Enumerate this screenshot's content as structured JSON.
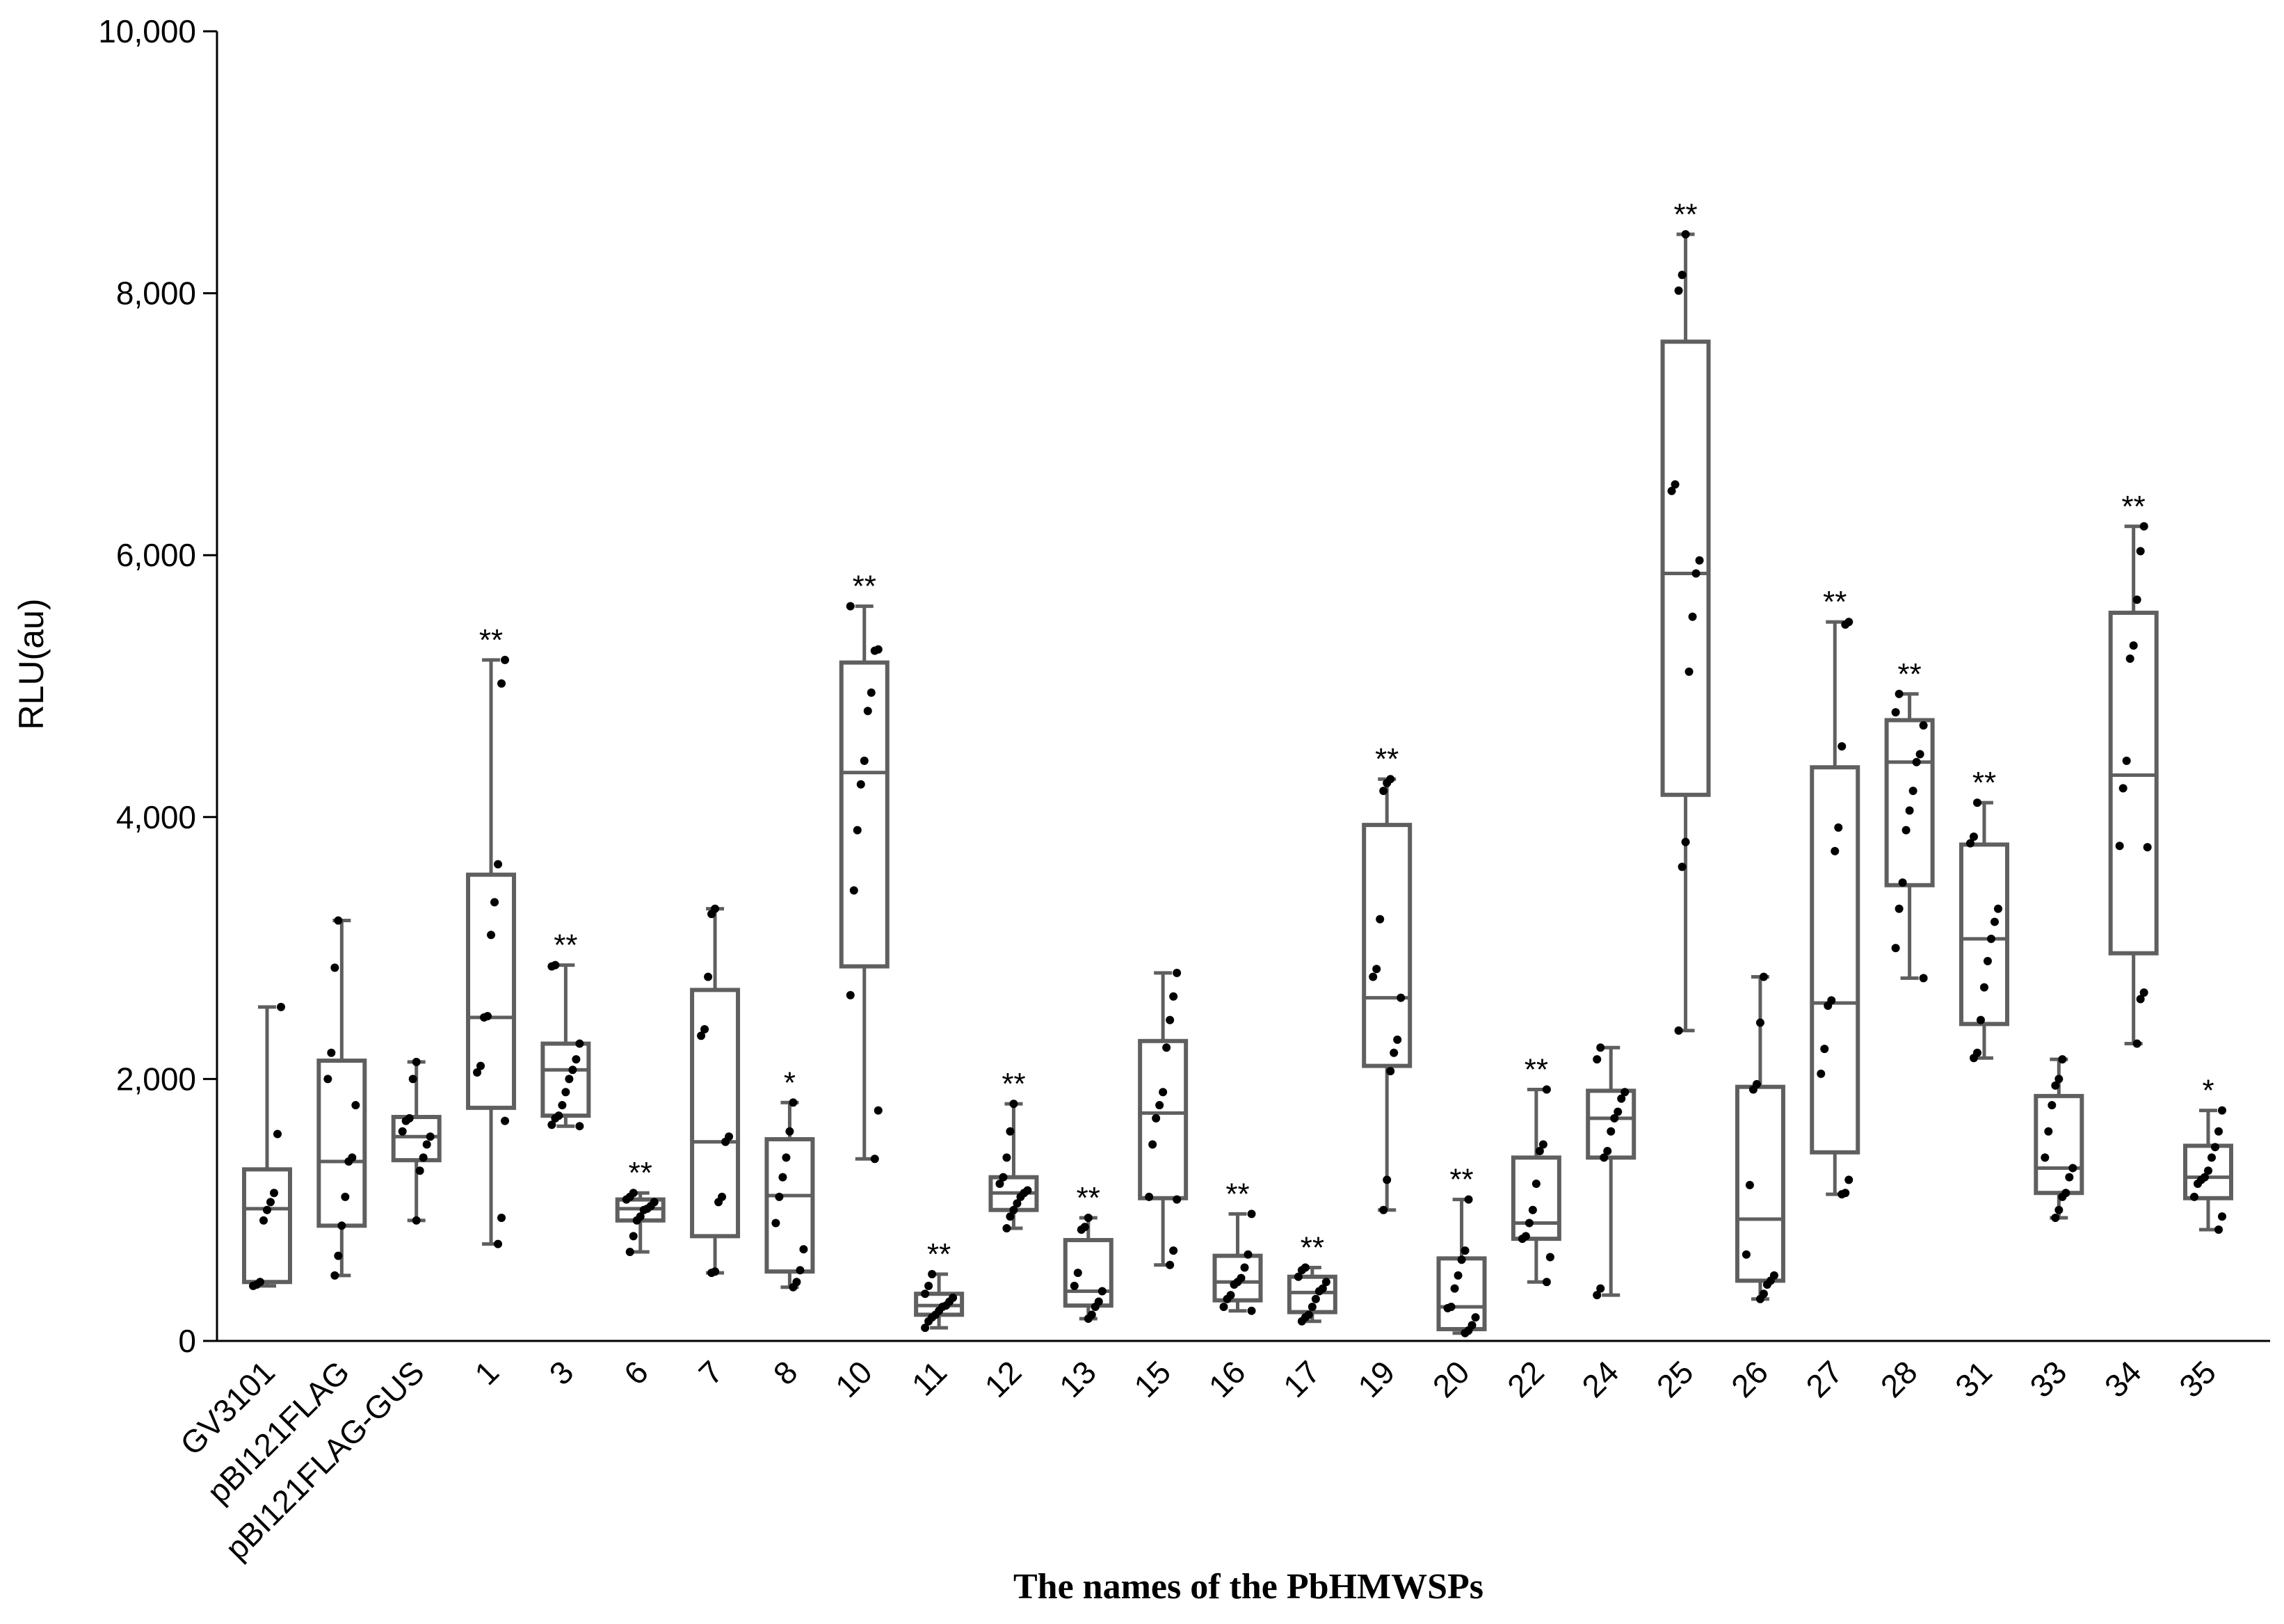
{
  "chart_data": {
    "type": "box",
    "xlabel": "The names of the PbHMWSPs",
    "ylabel": "RLU(au)",
    "ylim": [
      0,
      10000
    ],
    "yticks": [
      0,
      2000,
      4000,
      6000,
      8000,
      10000
    ],
    "ytick_labels": [
      "0",
      "2,000",
      "4,000",
      "6,000",
      "8,000",
      "10,000"
    ],
    "grid": false,
    "box_color": "#5f5f5f",
    "point_color": "#000000",
    "categories": [
      "GV3101",
      "pBI121FLAG",
      "pBI121FLAG-GUS",
      "1",
      "3",
      "6",
      "7",
      "8",
      "10",
      "11",
      "12",
      "13",
      "15",
      "16",
      "17",
      "19",
      "20",
      "22",
      "24",
      "25",
      "26",
      "27",
      "28",
      "31",
      "33",
      "34",
      "35"
    ],
    "boxes": [
      {
        "min": 420,
        "q1": 450,
        "median": 1010,
        "q3": 1310,
        "max": 2550,
        "sig": "",
        "points": [
          420,
          430,
          450,
          920,
          1000,
          1060,
          1130,
          1580,
          2550
        ]
      },
      {
        "min": 500,
        "q1": 880,
        "median": 1370,
        "q3": 2140,
        "max": 3210,
        "sig": "",
        "points": [
          500,
          650,
          880,
          1100,
          1370,
          1400,
          1800,
          2000,
          2200,
          2850,
          3210
        ]
      },
      {
        "min": 920,
        "q1": 1380,
        "median": 1560,
        "q3": 1710,
        "max": 2130,
        "sig": "",
        "points": [
          920,
          1300,
          1400,
          1500,
          1560,
          1600,
          1680,
          1700,
          2000,
          2130
        ]
      },
      {
        "min": 740,
        "q1": 1780,
        "median": 2470,
        "q3": 3560,
        "max": 5200,
        "sig": "**",
        "points": [
          740,
          940,
          1680,
          2050,
          2100,
          2470,
          2480,
          3100,
          3350,
          3640,
          5020,
          5200
        ]
      },
      {
        "min": 1640,
        "q1": 1720,
        "median": 2070,
        "q3": 2270,
        "max": 2870,
        "sig": "**",
        "points": [
          1640,
          1650,
          1700,
          1720,
          1800,
          1900,
          2000,
          2070,
          2150,
          2270,
          2860,
          2870
        ]
      },
      {
        "min": 680,
        "q1": 920,
        "median": 1010,
        "q3": 1080,
        "max": 1130,
        "sig": "**",
        "points": [
          680,
          800,
          920,
          950,
          1000,
          1010,
          1030,
          1060,
          1080,
          1100,
          1130
        ]
      },
      {
        "min": 520,
        "q1": 800,
        "median": 1520,
        "q3": 2680,
        "max": 3300,
        "sig": "",
        "points": [
          520,
          530,
          1060,
          1100,
          1520,
          1560,
          2330,
          2380,
          2780,
          3260,
          3300
        ]
      },
      {
        "min": 410,
        "q1": 530,
        "median": 1110,
        "q3": 1540,
        "max": 1820,
        "sig": "*",
        "points": [
          410,
          450,
          540,
          700,
          900,
          1100,
          1250,
          1400,
          1600,
          1820
        ]
      },
      {
        "min": 1390,
        "q1": 2860,
        "median": 4340,
        "q3": 5180,
        "max": 5610,
        "sig": "**",
        "points": [
          1390,
          1760,
          2640,
          3440,
          3900,
          4250,
          4430,
          4810,
          4950,
          5270,
          5280,
          5610
        ]
      },
      {
        "min": 100,
        "q1": 200,
        "median": 270,
        "q3": 360,
        "max": 510,
        "sig": "**",
        "points": [
          100,
          150,
          180,
          200,
          230,
          260,
          270,
          300,
          330,
          360,
          420,
          510
        ]
      },
      {
        "min": 860,
        "q1": 1000,
        "median": 1130,
        "q3": 1250,
        "max": 1810,
        "sig": "**",
        "points": [
          860,
          950,
          1000,
          1050,
          1100,
          1130,
          1150,
          1200,
          1250,
          1400,
          1600,
          1810
        ]
      },
      {
        "min": 170,
        "q1": 270,
        "median": 380,
        "q3": 770,
        "max": 940,
        "sig": "**",
        "points": [
          170,
          200,
          260,
          300,
          380,
          420,
          520,
          850,
          870,
          940
        ]
      },
      {
        "min": 580,
        "q1": 1090,
        "median": 1740,
        "q3": 2290,
        "max": 2810,
        "sig": "",
        "points": [
          580,
          690,
          1080,
          1100,
          1500,
          1700,
          1800,
          1900,
          2240,
          2450,
          2630,
          2810
        ]
      },
      {
        "min": 230,
        "q1": 310,
        "median": 450,
        "q3": 650,
        "max": 970,
        "sig": "**",
        "points": [
          230,
          260,
          320,
          350,
          430,
          450,
          480,
          560,
          660,
          970
        ]
      },
      {
        "min": 150,
        "q1": 220,
        "median": 370,
        "q3": 490,
        "max": 560,
        "sig": "**",
        "points": [
          150,
          180,
          200,
          260,
          320,
          380,
          400,
          450,
          490,
          540,
          560
        ]
      },
      {
        "min": 1000,
        "q1": 2100,
        "median": 2620,
        "q3": 3940,
        "max": 4290,
        "sig": "**",
        "points": [
          1000,
          1230,
          2060,
          2200,
          2300,
          2620,
          2780,
          2840,
          3220,
          4200,
          4260,
          4290
        ]
      },
      {
        "min": 60,
        "q1": 90,
        "median": 260,
        "q3": 630,
        "max": 1080,
        "sig": "**",
        "points": [
          60,
          80,
          120,
          180,
          250,
          260,
          400,
          500,
          620,
          690,
          1080
        ]
      },
      {
        "min": 450,
        "q1": 780,
        "median": 900,
        "q3": 1400,
        "max": 1920,
        "sig": "**",
        "points": [
          450,
          640,
          780,
          800,
          900,
          1000,
          1200,
          1450,
          1500,
          1920
        ]
      },
      {
        "min": 350,
        "q1": 1400,
        "median": 1700,
        "q3": 1910,
        "max": 2240,
        "sig": "",
        "points": [
          350,
          400,
          1400,
          1450,
          1600,
          1700,
          1750,
          1850,
          1900,
          2150,
          2240
        ]
      },
      {
        "min": 2370,
        "q1": 4170,
        "median": 5860,
        "q3": 7630,
        "max": 8450,
        "sig": "**",
        "points": [
          2370,
          3620,
          3810,
          5110,
          5530,
          5860,
          5960,
          6490,
          6540,
          8020,
          8140,
          8450
        ]
      },
      {
        "min": 320,
        "q1": 460,
        "median": 930,
        "q3": 1940,
        "max": 2780,
        "sig": "",
        "points": [
          320,
          360,
          430,
          460,
          500,
          660,
          1190,
          1920,
          1960,
          2430,
          2780
        ]
      },
      {
        "min": 1120,
        "q1": 1440,
        "median": 2580,
        "q3": 4380,
        "max": 5490,
        "sig": "**",
        "points": [
          1120,
          1130,
          1230,
          2040,
          2230,
          2560,
          2600,
          3740,
          3920,
          4540,
          5470,
          5490
        ]
      },
      {
        "min": 2770,
        "q1": 3480,
        "median": 4420,
        "q3": 4740,
        "max": 4940,
        "sig": "**",
        "points": [
          2770,
          3000,
          3300,
          3500,
          3900,
          4050,
          4200,
          4420,
          4480,
          4700,
          4800,
          4940
        ]
      },
      {
        "min": 2160,
        "q1": 2420,
        "median": 3070,
        "q3": 3790,
        "max": 4110,
        "sig": "**",
        "points": [
          2160,
          2200,
          2450,
          2700,
          2900,
          3070,
          3200,
          3300,
          3800,
          3850,
          4110
        ]
      },
      {
        "min": 940,
        "q1": 1130,
        "median": 1320,
        "q3": 1870,
        "max": 2150,
        "sig": "",
        "points": [
          940,
          1000,
          1100,
          1130,
          1250,
          1320,
          1400,
          1600,
          1800,
          1950,
          2000,
          2150
        ]
      },
      {
        "min": 2270,
        "q1": 2960,
        "median": 4320,
        "q3": 5560,
        "max": 6220,
        "sig": "**",
        "points": [
          2270,
          2610,
          2660,
          3770,
          3780,
          4220,
          4430,
          5210,
          5310,
          5660,
          6030,
          6220
        ]
      },
      {
        "min": 850,
        "q1": 1090,
        "median": 1250,
        "q3": 1490,
        "max": 1760,
        "sig": "*",
        "points": [
          850,
          950,
          1100,
          1200,
          1230,
          1250,
          1300,
          1400,
          1480,
          1600,
          1760
        ]
      }
    ]
  }
}
